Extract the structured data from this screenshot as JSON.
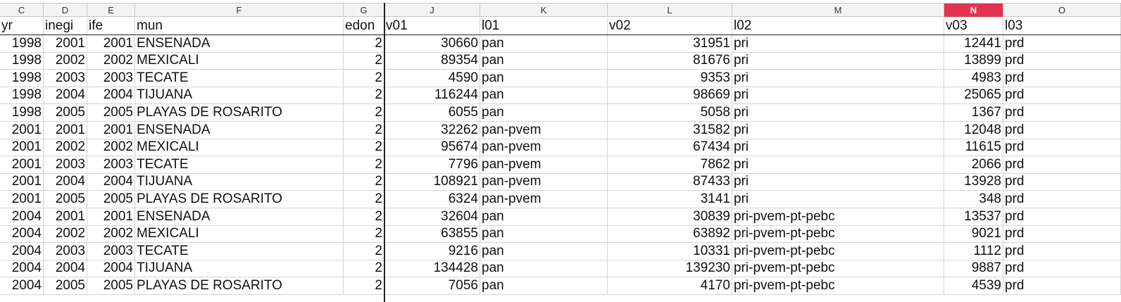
{
  "columns": [
    {
      "letter": "C",
      "key": "yr",
      "align": "num"
    },
    {
      "letter": "D",
      "key": "inegi",
      "align": "num"
    },
    {
      "letter": "E",
      "key": "ife",
      "align": "num"
    },
    {
      "letter": "F",
      "key": "mun",
      "align": "txt"
    },
    {
      "letter": "G",
      "key": "edon",
      "align": "num"
    },
    {
      "letter": "J",
      "key": "v01",
      "align": "num"
    },
    {
      "letter": "K",
      "key": "l01",
      "align": "txt"
    },
    {
      "letter": "L",
      "key": "v02",
      "align": "num"
    },
    {
      "letter": "M",
      "key": "l02",
      "align": "txt"
    },
    {
      "letter": "N",
      "key": "v03",
      "align": "num",
      "selected": true
    },
    {
      "letter": "O",
      "key": "l03",
      "align": "txt"
    }
  ],
  "header_row": [
    "yr",
    "inegi",
    "ife",
    "mun",
    "edon",
    "v01",
    "l01",
    "v02",
    "l02",
    "v03",
    "l03"
  ],
  "rows": [
    [
      "1998",
      "2001",
      "2001",
      "ENSENADA",
      "2",
      "30660",
      "pan",
      "31951",
      "pri",
      "12441",
      "prd"
    ],
    [
      "1998",
      "2002",
      "2002",
      "MEXICALI",
      "2",
      "89354",
      "pan",
      "81676",
      "pri",
      "13899",
      "prd"
    ],
    [
      "1998",
      "2003",
      "2003",
      "TECATE",
      "2",
      "4590",
      "pan",
      "9353",
      "pri",
      "4983",
      "prd"
    ],
    [
      "1998",
      "2004",
      "2004",
      "TIJUANA",
      "2",
      "116244",
      "pan",
      "98669",
      "pri",
      "25065",
      "prd"
    ],
    [
      "1998",
      "2005",
      "2005",
      "PLAYAS DE ROSARITO",
      "2",
      "6055",
      "pan",
      "5058",
      "pri",
      "1367",
      "prd"
    ],
    [
      "2001",
      "2001",
      "2001",
      "ENSENADA",
      "2",
      "32262",
      "pan-pvem",
      "31582",
      "pri",
      "12048",
      "prd"
    ],
    [
      "2001",
      "2002",
      "2002",
      "MEXICALI",
      "2",
      "95674",
      "pan-pvem",
      "67434",
      "pri",
      "11615",
      "prd"
    ],
    [
      "2001",
      "2003",
      "2003",
      "TECATE",
      "2",
      "7796",
      "pan-pvem",
      "7862",
      "pri",
      "2066",
      "prd"
    ],
    [
      "2001",
      "2004",
      "2004",
      "TIJUANA",
      "2",
      "108921",
      "pan-pvem",
      "87433",
      "pri",
      "13928",
      "prd"
    ],
    [
      "2001",
      "2005",
      "2005",
      "PLAYAS DE ROSARITO",
      "2",
      "6324",
      "pan-pvem",
      "3141",
      "pri",
      "348",
      "prd"
    ],
    [
      "2004",
      "2001",
      "2001",
      "ENSENADA",
      "2",
      "32604",
      "pan",
      "30839",
      "pri-pvem-pt-pebc",
      "13537",
      "prd"
    ],
    [
      "2004",
      "2002",
      "2002",
      "MEXICALI",
      "2",
      "63855",
      "pan",
      "63892",
      "pri-pvem-pt-pebc",
      "9021",
      "prd"
    ],
    [
      "2004",
      "2003",
      "2003",
      "TECATE",
      "2",
      "9216",
      "pan",
      "10331",
      "pri-pvem-pt-pebc",
      "1112",
      "prd"
    ],
    [
      "2004",
      "2004",
      "2004",
      "TIJUANA",
      "2",
      "134428",
      "pan",
      "139230",
      "pri-pvem-pt-pebc",
      "9887",
      "prd"
    ],
    [
      "2004",
      "2005",
      "2005",
      "PLAYAS DE ROSARITO",
      "2",
      "7056",
      "pan",
      "4170",
      "pri-pvem-pt-pebc",
      "4539",
      "prd"
    ]
  ]
}
